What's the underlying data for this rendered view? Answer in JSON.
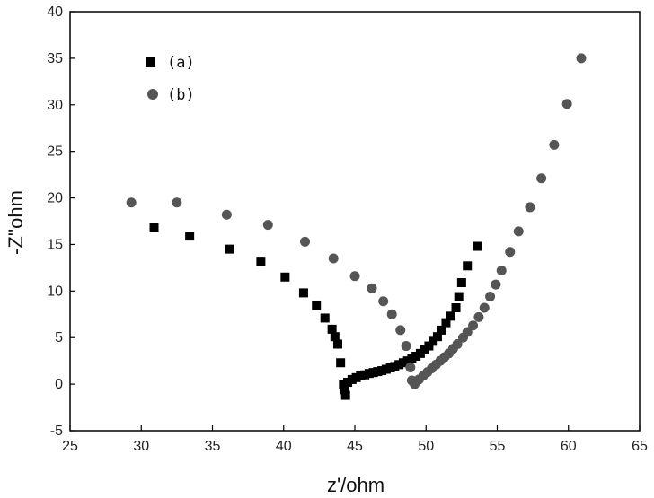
{
  "chart_data": {
    "type": "scatter",
    "title": "",
    "xlabel": "z'/ohm",
    "ylabel": "-Z''ohm",
    "xlim": [
      25,
      65
    ],
    "ylim": [
      -5,
      40
    ],
    "xticks": [
      25,
      30,
      35,
      40,
      45,
      50,
      55,
      60,
      65
    ],
    "yticks": [
      -5,
      0,
      5,
      10,
      15,
      20,
      25,
      30,
      35,
      40
    ],
    "grid": false,
    "legend_position": "top-left",
    "series": [
      {
        "name": "(a)",
        "marker": "square",
        "color": "#000000",
        "points": [
          [
            30.9,
            16.8
          ],
          [
            33.4,
            15.9
          ],
          [
            36.2,
            14.5
          ],
          [
            38.4,
            13.2
          ],
          [
            40.1,
            11.5
          ],
          [
            41.4,
            9.8
          ],
          [
            42.3,
            8.4
          ],
          [
            42.9,
            7.1
          ],
          [
            43.4,
            5.9
          ],
          [
            43.6,
            5.1
          ],
          [
            43.8,
            4.3
          ],
          [
            44.0,
            2.3
          ],
          [
            44.2,
            0.0
          ],
          [
            44.3,
            -0.6
          ],
          [
            44.35,
            -1.2
          ],
          [
            44.5,
            0.2
          ],
          [
            44.8,
            0.5
          ],
          [
            45.1,
            0.7
          ],
          [
            45.4,
            0.9
          ],
          [
            45.7,
            1.0
          ],
          [
            46.0,
            1.15
          ],
          [
            46.3,
            1.25
          ],
          [
            46.6,
            1.35
          ],
          [
            46.9,
            1.45
          ],
          [
            47.2,
            1.6
          ],
          [
            47.5,
            1.75
          ],
          [
            47.8,
            1.9
          ],
          [
            48.1,
            2.1
          ],
          [
            48.4,
            2.3
          ],
          [
            48.7,
            2.5
          ],
          [
            49.0,
            2.75
          ],
          [
            49.3,
            3.0
          ],
          [
            49.6,
            3.3
          ],
          [
            49.9,
            3.7
          ],
          [
            50.2,
            4.1
          ],
          [
            50.5,
            4.6
          ],
          [
            50.8,
            5.1
          ],
          [
            51.1,
            5.8
          ],
          [
            51.4,
            6.6
          ],
          [
            51.7,
            7.3
          ],
          [
            52.1,
            8.2
          ],
          [
            52.3,
            9.4
          ],
          [
            52.5,
            10.9
          ],
          [
            52.9,
            12.7
          ],
          [
            53.6,
            14.8
          ]
        ]
      },
      {
        "name": "(b)",
        "marker": "circle",
        "color": "#555555",
        "points": [
          [
            29.3,
            19.5
          ],
          [
            32.5,
            19.5
          ],
          [
            36.0,
            18.2
          ],
          [
            38.9,
            17.1
          ],
          [
            41.5,
            15.3
          ],
          [
            43.5,
            13.5
          ],
          [
            45.0,
            11.6
          ],
          [
            46.2,
            10.3
          ],
          [
            47.0,
            8.9
          ],
          [
            47.6,
            7.5
          ],
          [
            48.2,
            5.8
          ],
          [
            48.6,
            4.1
          ],
          [
            48.9,
            1.8
          ],
          [
            49.0,
            0.4
          ],
          [
            49.2,
            0.0
          ],
          [
            49.5,
            0.5
          ],
          [
            49.8,
            0.9
          ],
          [
            50.1,
            1.3
          ],
          [
            50.4,
            1.7
          ],
          [
            50.7,
            2.1
          ],
          [
            51.0,
            2.5
          ],
          [
            51.3,
            2.9
          ],
          [
            51.6,
            3.3
          ],
          [
            51.9,
            3.8
          ],
          [
            52.2,
            4.3
          ],
          [
            52.6,
            5.0
          ],
          [
            52.9,
            5.6
          ],
          [
            53.3,
            6.3
          ],
          [
            53.7,
            7.2
          ],
          [
            54.1,
            8.2
          ],
          [
            54.5,
            9.4
          ],
          [
            54.9,
            10.7
          ],
          [
            55.3,
            12.2
          ],
          [
            55.9,
            14.2
          ],
          [
            56.5,
            16.4
          ],
          [
            57.3,
            19.0
          ],
          [
            58.1,
            22.1
          ],
          [
            59.0,
            25.7
          ],
          [
            59.9,
            30.1
          ],
          [
            60.9,
            35.0
          ]
        ]
      }
    ]
  }
}
